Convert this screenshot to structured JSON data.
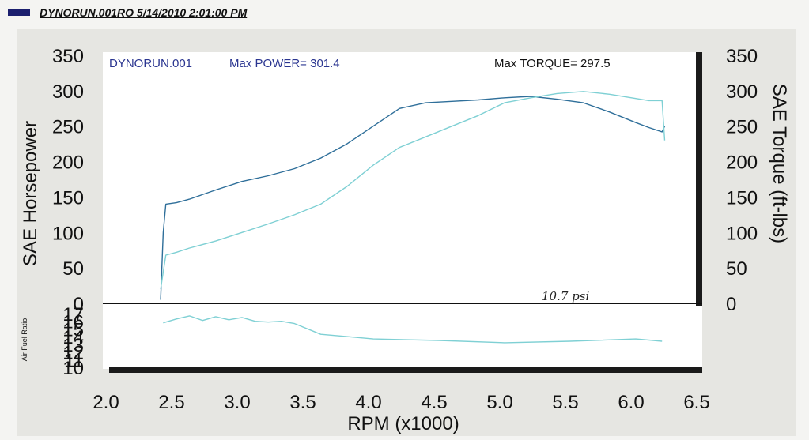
{
  "header": {
    "title": "DYNORUN.001RO  5/14/2010 2:01:00 PM",
    "accent_color": "#1b1f6e"
  },
  "chart_data": [
    {
      "type": "line",
      "run_label": "DYNORUN.001",
      "max_power_label": "Max POWER= 301.4",
      "max_torque_label": "Max TORQUE= 297.5",
      "annotation": "10.7 psi",
      "ylabel_left": "SAE Horsepower",
      "ylabel_right": "SAE Torque (ft-lbs)",
      "xlabel": "RPM (x1000)",
      "xlim": [
        2.0,
        6.5
      ],
      "ylim": [
        0,
        350
      ],
      "x_ticks": [
        "2.0",
        "2.5",
        "3.0",
        "3.5",
        "4.0",
        "4.5",
        "5.0",
        "5.5",
        "6.0",
        "6.5"
      ],
      "y_ticks_left": [
        "0",
        "50",
        "100",
        "150",
        "200",
        "250",
        "300",
        "350"
      ],
      "y_ticks_right": [
        "0",
        "50",
        "100",
        "150",
        "200",
        "250",
        "300",
        "350"
      ],
      "series": [
        {
          "color": "#2f6f9a",
          "x": [
            2.38,
            2.4,
            2.42,
            2.5,
            2.6,
            2.8,
            3.0,
            3.2,
            3.4,
            3.6,
            3.8,
            4.0,
            4.2,
            4.4,
            4.6,
            4.8,
            5.0,
            5.2,
            5.4,
            5.6,
            5.8,
            6.0,
            6.1,
            6.2,
            6.22
          ],
          "y": [
            5,
            100,
            140,
            142,
            147,
            160,
            172,
            180,
            190,
            205,
            225,
            250,
            275,
            283,
            285,
            287,
            290,
            292,
            288,
            283,
            270,
            255,
            248,
            242,
            250
          ]
        },
        {
          "color": "#7fd0d4",
          "x": [
            2.38,
            2.42,
            2.5,
            2.6,
            2.8,
            3.0,
            3.2,
            3.4,
            3.6,
            3.8,
            4.0,
            4.2,
            4.4,
            4.6,
            4.8,
            5.0,
            5.2,
            5.4,
            5.6,
            5.8,
            6.0,
            6.1,
            6.2,
            6.22
          ],
          "y": [
            20,
            68,
            72,
            78,
            88,
            100,
            112,
            125,
            140,
            165,
            195,
            220,
            235,
            250,
            265,
            283,
            290,
            296,
            299,
            295,
            289,
            286,
            286,
            230
          ]
        }
      ]
    },
    {
      "type": "line",
      "ylabel": "Air Fuel Ratio",
      "xlim": [
        2.0,
        6.5
      ],
      "ylim": [
        10,
        17
      ],
      "y_ticks": [
        "10",
        "11",
        "12",
        "13",
        "14",
        "15",
        "16",
        "17"
      ],
      "series": [
        {
          "color": "#7fd0d4",
          "x": [
            2.4,
            2.5,
            2.6,
            2.7,
            2.8,
            2.9,
            3.0,
            3.1,
            3.2,
            3.3,
            3.4,
            3.6,
            3.8,
            4.0,
            4.5,
            5.0,
            5.5,
            6.0,
            6.2
          ],
          "y": [
            15.8,
            16.3,
            16.7,
            16.1,
            16.6,
            16.2,
            16.5,
            16.0,
            15.9,
            16.0,
            15.7,
            14.3,
            14.0,
            13.7,
            13.5,
            13.2,
            13.4,
            13.7,
            13.4
          ]
        }
      ]
    }
  ]
}
